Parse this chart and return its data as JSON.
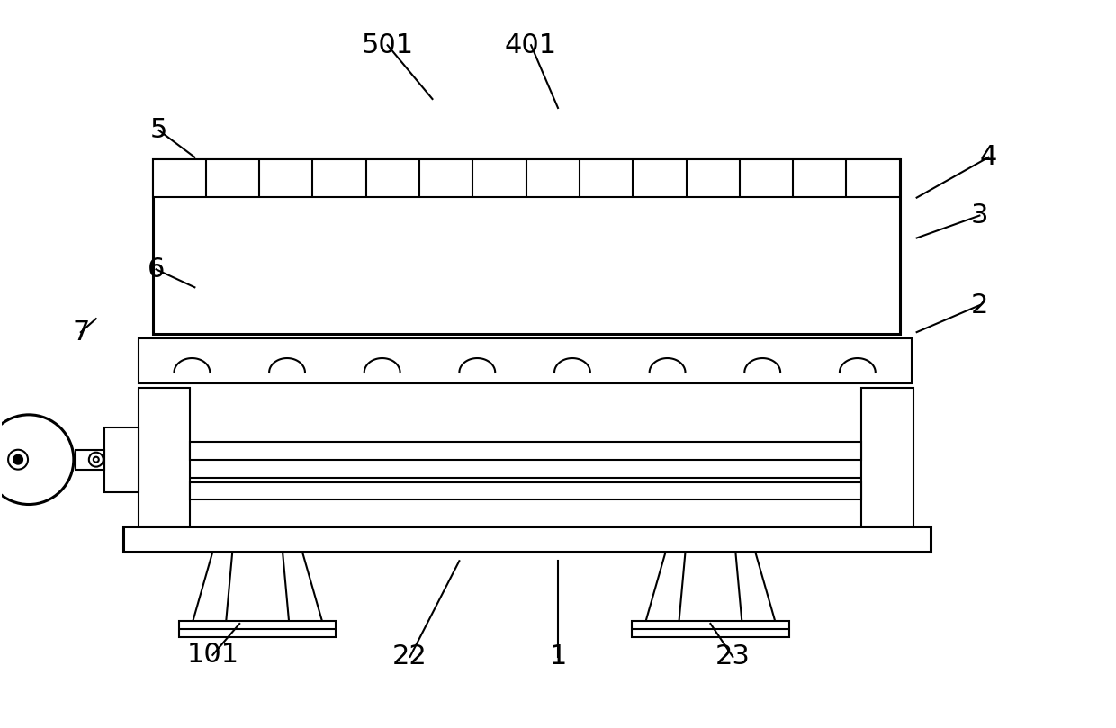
{
  "bg_color": "#ffffff",
  "line_color": "#000000",
  "lw": 1.5,
  "tlw": 2.2,
  "fig_width": 12.4,
  "fig_height": 8.09,
  "dpi": 100
}
